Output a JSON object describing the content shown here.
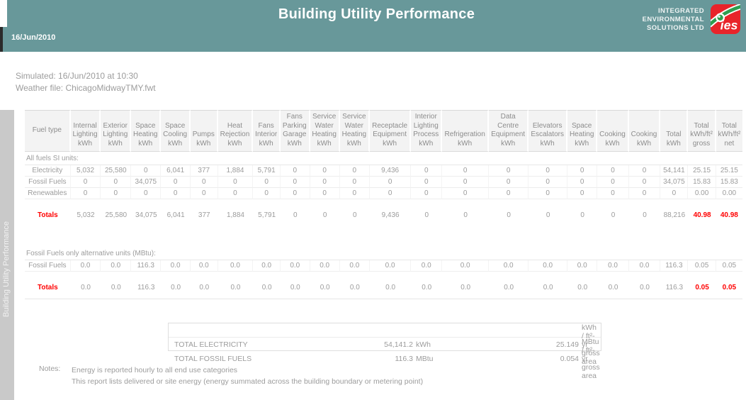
{
  "header": {
    "title": "Building Utility Performance",
    "date": "16/Jun/2010",
    "logo": {
      "line1": "INTEGRATED",
      "line2": "ENVIRONMENTAL",
      "line3": "SOLUTIONS LTD",
      "mark": "ies"
    }
  },
  "colors": {
    "banner_teal": "#68989a",
    "accent_red": "#ff0000",
    "sidebar_gray": "#c9c9c9",
    "logo_red": "#e8242a",
    "logo_green": "#2e9e4f"
  },
  "meta": {
    "simulated": "Simulated: 16/Jun/2010 at 10:30",
    "weather": "Weather file: ChicagoMidwayTMY.fwt"
  },
  "sidebar": {
    "label": "Building Utility Performance"
  },
  "table": {
    "columns": [
      {
        "id": "fuel-type",
        "lines": [
          "Fuel type"
        ]
      },
      {
        "id": "internal-lighting",
        "lines": [
          "Internal",
          "Lighting",
          "kWh"
        ]
      },
      {
        "id": "exterior-lighting",
        "lines": [
          "Exterior",
          "Lighting",
          "kWh"
        ]
      },
      {
        "id": "space-heating",
        "lines": [
          "Space",
          "Heating",
          "kWh"
        ]
      },
      {
        "id": "space-cooling",
        "lines": [
          "Space",
          "Cooling",
          "kWh"
        ]
      },
      {
        "id": "pumps",
        "lines": [
          "Pumps",
          "kWh"
        ]
      },
      {
        "id": "heat-rejection",
        "lines": [
          "Heat",
          "Rejection",
          "kWh"
        ]
      },
      {
        "id": "fans-interior",
        "lines": [
          "Fans",
          "Interior",
          "kWh"
        ]
      },
      {
        "id": "fans-parking-garage",
        "lines": [
          "Fans",
          "Parking",
          "Garage",
          "kWh"
        ]
      },
      {
        "id": "service-water-heating-1",
        "lines": [
          "Service",
          "Water",
          "Heating",
          "kWh"
        ]
      },
      {
        "id": "service-water-heating-2",
        "lines": [
          "Service",
          "Water",
          "Heating",
          "kWh"
        ]
      },
      {
        "id": "receptacle-equipment",
        "lines": [
          "Receptacle",
          "Equipment",
          "kWh"
        ]
      },
      {
        "id": "interior-lighting-process",
        "lines": [
          "Interior",
          "Lighting",
          "Process",
          "kWh"
        ]
      },
      {
        "id": "refrigeration",
        "lines": [
          "Refrigeration",
          "kWh"
        ]
      },
      {
        "id": "data-centre-equipment",
        "lines": [
          "Data",
          "Centre",
          "Equipment",
          "kWh"
        ]
      },
      {
        "id": "elevators-escalators",
        "lines": [
          "Elevators",
          "Escalators",
          "kWh"
        ]
      },
      {
        "id": "space-heating-2",
        "lines": [
          "Space",
          "Heating",
          "kWh"
        ]
      },
      {
        "id": "cooking-1",
        "lines": [
          "Cooking",
          "kWh"
        ]
      },
      {
        "id": "cooking-2",
        "lines": [
          "Cooking",
          "kWh"
        ]
      },
      {
        "id": "total",
        "lines": [
          "Total",
          "kWh"
        ]
      },
      {
        "id": "total-gross",
        "lines": [
          "Total",
          "kWh/ft²",
          "gross"
        ]
      },
      {
        "id": "total-net",
        "lines": [
          "Total",
          "kWh/ft²",
          "net"
        ]
      }
    ],
    "rows": [
      {
        "type": "label",
        "text": "All fuels SI units:",
        "underline": true
      },
      {
        "type": "data",
        "label": "Electricity",
        "values": [
          "5,032",
          "25,580",
          "0",
          "6,041",
          "377",
          "1,884",
          "5,791",
          "0",
          "0",
          "0",
          "9,436",
          "0",
          "0",
          "0",
          "0",
          "0",
          "0",
          "0",
          "54,141",
          "25.15",
          "25.15"
        ]
      },
      {
        "type": "data",
        "label": "Fossil Fuels",
        "values": [
          "0",
          "0",
          "34,075",
          "0",
          "0",
          "0",
          "0",
          "0",
          "0",
          "0",
          "0",
          "0",
          "0",
          "0",
          "0",
          "0",
          "0",
          "0",
          "34,075",
          "15.83",
          "15.83"
        ]
      },
      {
        "type": "data",
        "label": "Renewables",
        "values": [
          "0",
          "0",
          "0",
          "0",
          "0",
          "0",
          "0",
          "0",
          "0",
          "0",
          "0",
          "0",
          "0",
          "0",
          "0",
          "0",
          "0",
          "0",
          "0",
          "0.00",
          "0.00"
        ]
      },
      {
        "type": "spacer"
      },
      {
        "type": "totals",
        "label": "Totals",
        "red_last": 2,
        "values": [
          "5,032",
          "25,580",
          "34,075",
          "6,041",
          "377",
          "1,884",
          "5,791",
          "0",
          "0",
          "0",
          "9,436",
          "0",
          "0",
          "0",
          "0",
          "0",
          "0",
          "0",
          "88,216",
          "40.98",
          "40.98"
        ]
      },
      {
        "type": "gap"
      },
      {
        "type": "label",
        "text": "Fossil Fuels only alternative units (MBtu):",
        "underline": true
      },
      {
        "type": "data",
        "label": "Fossil Fuels",
        "values": [
          "0.0",
          "0.0",
          "116.3",
          "0.0",
          "0.0",
          "0.0",
          "0.0",
          "0.0",
          "0.0",
          "0.0",
          "0.0",
          "0.0",
          "0.0",
          "0.0",
          "0.0",
          "0.0",
          "0.0",
          "0.0",
          "116.3",
          "0.05",
          "0.05"
        ]
      },
      {
        "type": "spacer"
      },
      {
        "type": "totals",
        "label": "Totals",
        "red_last": 2,
        "values": [
          "0.0",
          "0.0",
          "116.3",
          "0.0",
          "0.0",
          "0.0",
          "0.0",
          "0.0",
          "0.0",
          "0.0",
          "0.0",
          "0.0",
          "0.0",
          "0.0",
          "0.0",
          "0.0",
          "0.0",
          "0.0",
          "116.3",
          "0.05",
          "0.05"
        ]
      },
      {
        "type": "rule"
      }
    ]
  },
  "summary": {
    "rows": [
      {
        "label": "TOTAL ELECTRICITY",
        "value": "54,141.2",
        "unit": "kWh",
        "per": "25.149",
        "per_unit": "kWh / ft²-yr gross area"
      },
      {
        "label": "TOTAL FOSSIL FUELS",
        "value": "116.3",
        "unit": "MBtu",
        "per": "0.054",
        "per_unit": "MBtu / ft²-yr gross area"
      }
    ]
  },
  "notes": {
    "label": "Notes:",
    "lines": [
      "Energy is reported hourly to all end use categories",
      "This report lists delivered or site energy (energy summated across the building boundary or metering point)"
    ]
  }
}
